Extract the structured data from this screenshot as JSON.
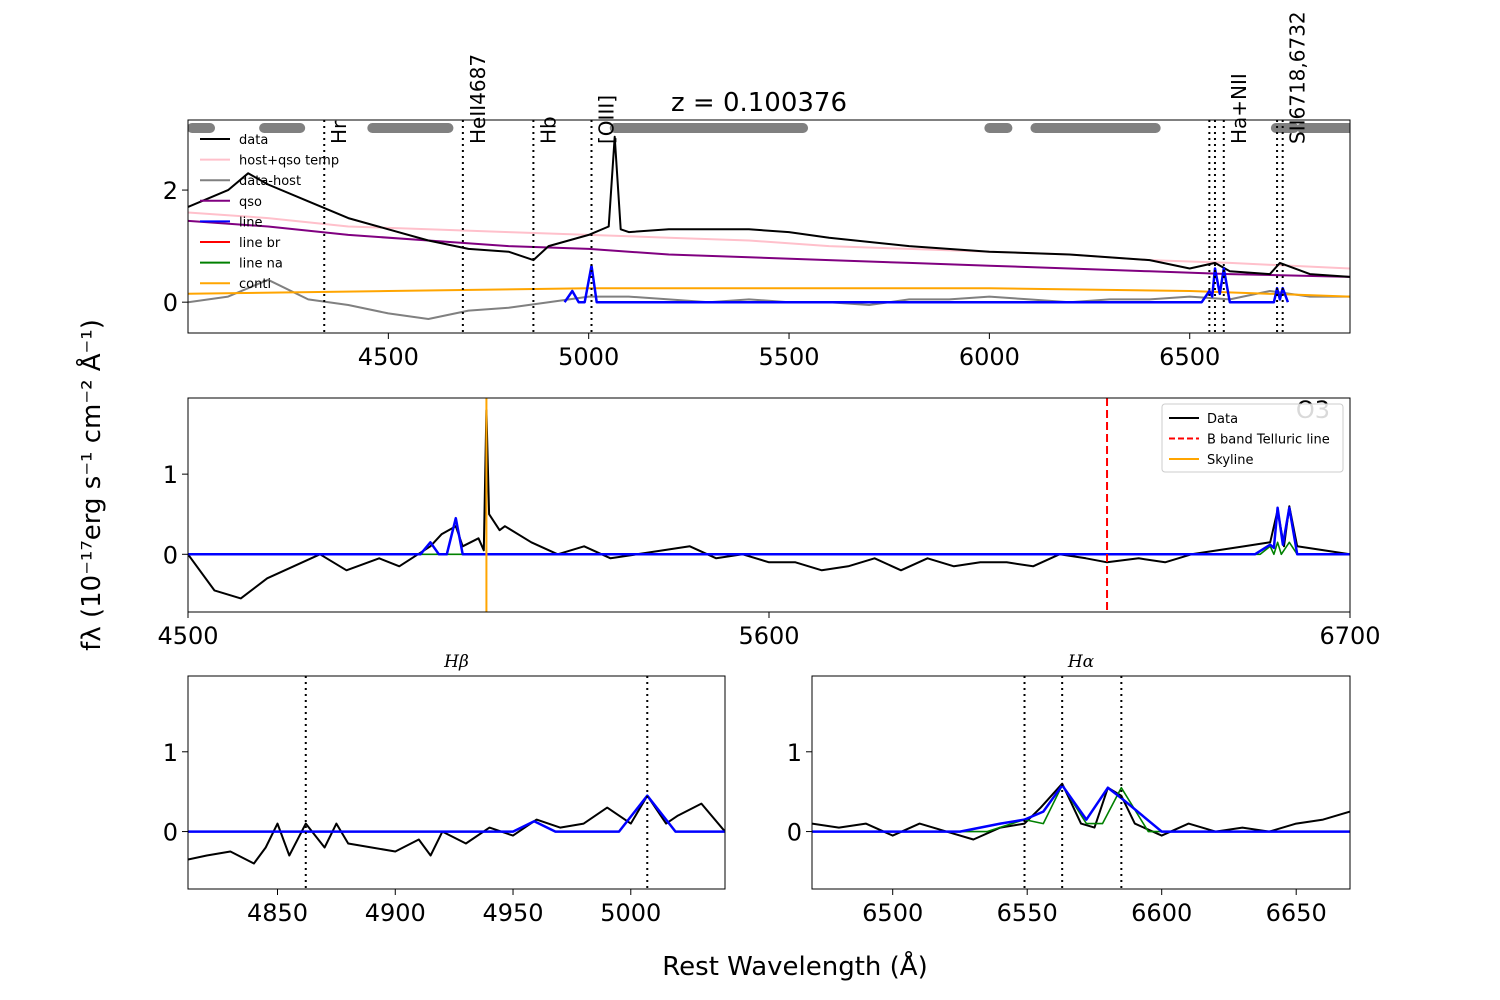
{
  "figure": {
    "xlabel": "Rest Wavelength (Å)",
    "ylabel": "fλ (10⁻¹⁷erg s⁻¹ cm⁻² Å⁻¹)"
  },
  "chart_data": [
    {
      "type": "line",
      "panel": "full-spectrum",
      "title": "z = 0.100376",
      "xlim": [
        4000,
        6900
      ],
      "ylim": [
        -0.55,
        3.25
      ],
      "xticks": [
        4500,
        5000,
        5500,
        6000,
        6500
      ],
      "yticks": [
        0,
        2
      ],
      "grid": false,
      "legend_position": "top-left",
      "legend": [
        {
          "label": "data",
          "color": "#000000"
        },
        {
          "label": "host+qso temp",
          "color": "#ffc0cb"
        },
        {
          "label": "data-host",
          "color": "#808080"
        },
        {
          "label": "qso",
          "color": "#800080"
        },
        {
          "label": "line",
          "color": "#0000ff"
        },
        {
          "label": "line br",
          "color": "#ff0000"
        },
        {
          "label": "line na",
          "color": "#008000"
        },
        {
          "label": "conti",
          "color": "#ffa500"
        }
      ],
      "line_markers": [
        {
          "label": "Hr",
          "x": [
            4340
          ]
        },
        {
          "label": "HeII4687",
          "x": [
            4686
          ]
        },
        {
          "label": "Hb",
          "x": [
            4862
          ]
        },
        {
          "label": "[OIII]",
          "x": [
            5007
          ]
        },
        {
          "label": "Ha+NII",
          "x": [
            6549,
            6563,
            6585
          ]
        },
        {
          "label": "SII6718,6732",
          "x": [
            6718,
            6732
          ]
        }
      ],
      "masked_ranges": [
        [
          4010,
          4055
        ],
        [
          4190,
          4280
        ],
        [
          4460,
          4650
        ],
        [
          5065,
          5535
        ],
        [
          6000,
          6045
        ],
        [
          6115,
          6415
        ],
        [
          6715,
          6760
        ],
        [
          6780,
          6900
        ]
      ],
      "series": [
        {
          "name": "data",
          "color": "#000000",
          "x": [
            4000,
            4100,
            4150,
            4200,
            4300,
            4400,
            4500,
            4600,
            4700,
            4800,
            4862,
            4900,
            5000,
            5050,
            5065,
            5080,
            5100,
            5200,
            5300,
            5400,
            5500,
            5600,
            5800,
            6000,
            6200,
            6400,
            6500,
            6563,
            6600,
            6700,
            6725,
            6800,
            6900
          ],
          "y": [
            1.7,
            2.0,
            2.3,
            2.1,
            1.8,
            1.5,
            1.3,
            1.1,
            0.95,
            0.9,
            0.75,
            1.0,
            1.2,
            1.35,
            2.95,
            1.3,
            1.25,
            1.3,
            1.3,
            1.3,
            1.25,
            1.15,
            1.0,
            0.9,
            0.85,
            0.75,
            0.6,
            0.7,
            0.55,
            0.5,
            0.7,
            0.5,
            0.45
          ]
        },
        {
          "name": "host+qso temp",
          "color": "#ffc0cb",
          "x": [
            4000,
            4200,
            4400,
            4600,
            4800,
            5000,
            5200,
            5400,
            5600,
            5800,
            6000,
            6200,
            6400,
            6600,
            6900
          ],
          "y": [
            1.6,
            1.5,
            1.35,
            1.3,
            1.25,
            1.2,
            1.15,
            1.1,
            1.0,
            0.95,
            0.9,
            0.85,
            0.75,
            0.7,
            0.6
          ]
        },
        {
          "name": "qso",
          "color": "#800080",
          "x": [
            4000,
            4200,
            4400,
            4600,
            4800,
            5000,
            5200,
            5400,
            5600,
            5800,
            6000,
            6200,
            6400,
            6600,
            6900
          ],
          "y": [
            1.45,
            1.35,
            1.2,
            1.1,
            1.0,
            0.95,
            0.85,
            0.8,
            0.75,
            0.7,
            0.65,
            0.6,
            0.55,
            0.5,
            0.45
          ]
        },
        {
          "name": "data-host",
          "color": "#808080",
          "x": [
            4000,
            4100,
            4200,
            4300,
            4400,
            4500,
            4600,
            4700,
            4800,
            4900,
            5000,
            5100,
            5200,
            5300,
            5400,
            5500,
            5600,
            5700,
            5800,
            5900,
            6000,
            6100,
            6200,
            6300,
            6400,
            6500,
            6600,
            6700,
            6800,
            6900
          ],
          "y": [
            0.0,
            0.1,
            0.4,
            0.05,
            -0.05,
            -0.2,
            -0.3,
            -0.15,
            -0.1,
            0.0,
            0.1,
            0.1,
            0.05,
            0.0,
            0.05,
            0.0,
            0.0,
            -0.05,
            0.05,
            0.05,
            0.1,
            0.05,
            0.0,
            0.05,
            0.05,
            0.1,
            0.05,
            0.2,
            0.1,
            0.1
          ]
        },
        {
          "name": "conti",
          "color": "#ffa500",
          "x": [
            4000,
            4500,
            5000,
            5500,
            6000,
            6500,
            6900
          ],
          "y": [
            0.15,
            0.2,
            0.25,
            0.25,
            0.25,
            0.2,
            0.1
          ]
        },
        {
          "name": "line",
          "color": "#0000ff",
          "x": [
            4940,
            4959,
            4975,
            4990,
            5007,
            5020,
            6530,
            6549,
            6556,
            6563,
            6575,
            6585,
            6600,
            6710,
            6718,
            6725,
            6732,
            6745
          ],
          "y": [
            0.0,
            0.2,
            0.0,
            0.0,
            0.65,
            0.0,
            0.0,
            0.2,
            0.1,
            0.6,
            0.15,
            0.6,
            0.0,
            0.0,
            0.25,
            0.05,
            0.25,
            0.0
          ]
        }
      ]
    },
    {
      "type": "line",
      "panel": "line-region",
      "xlim": [
        4500,
        6700
      ],
      "ylim": [
        -0.72,
        1.95
      ],
      "xticks": [
        4500,
        5600,
        6700
      ],
      "yticks": [
        0,
        1
      ],
      "overlay_label": "O3",
      "legend_position": "top-right",
      "legend": [
        {
          "label": "Data",
          "color": "#000000",
          "style": "solid"
        },
        {
          "label": "B band Telluric line",
          "color": "#ff0000",
          "style": "dashed"
        },
        {
          "label": "Skyline",
          "color": "#ffa500",
          "style": "solid"
        }
      ],
      "vlines": [
        {
          "name": "B band Telluric line",
          "x": 6240,
          "color": "#ff0000"
        },
        {
          "name": "Skyline",
          "x": 5065,
          "color": "#ffa500"
        }
      ],
      "series": [
        {
          "name": "Data",
          "color": "#000000",
          "x": [
            4500,
            4550,
            4600,
            4650,
            4700,
            4750,
            4800,
            4862,
            4900,
            4959,
            4980,
            5007,
            5020,
            5050,
            5060,
            5065,
            5070,
            5090,
            5100,
            5150,
            5200,
            5250,
            5300,
            5350,
            5400,
            5450,
            5500,
            5550,
            5600,
            5650,
            5700,
            5750,
            5800,
            5850,
            5900,
            5950,
            6000,
            6050,
            6100,
            6150,
            6200,
            6240,
            6300,
            6350,
            6400,
            6450,
            6500,
            6549,
            6563,
            6575,
            6585,
            6600,
            6650,
            6700
          ],
          "y": [
            0.0,
            -0.45,
            -0.55,
            -0.3,
            -0.15,
            0.0,
            -0.2,
            -0.05,
            -0.15,
            0.1,
            0.25,
            0.35,
            0.1,
            0.2,
            0.05,
            1.8,
            0.5,
            0.3,
            0.35,
            0.15,
            0.0,
            0.1,
            -0.05,
            0.0,
            0.05,
            0.1,
            -0.05,
            0.0,
            -0.1,
            -0.1,
            -0.2,
            -0.15,
            -0.05,
            -0.2,
            -0.05,
            -0.15,
            -0.1,
            -0.1,
            -0.15,
            0.0,
            -0.05,
            -0.1,
            -0.05,
            -0.1,
            0.0,
            0.05,
            0.1,
            0.15,
            0.55,
            0.1,
            0.6,
            0.1,
            0.05,
            0.0
          ]
        },
        {
          "name": "line",
          "color": "#0000ff",
          "x": [
            4500,
            4940,
            4959,
            4975,
            4990,
            5007,
            5020,
            6520,
            6549,
            6556,
            6563,
            6573,
            6585,
            6600,
            6700
          ],
          "y": [
            0.0,
            0.0,
            0.15,
            0.0,
            0.0,
            0.45,
            0.0,
            0.0,
            0.12,
            0.08,
            0.58,
            0.12,
            0.58,
            0.0,
            0.0
          ]
        },
        {
          "name": "line na",
          "color": "#008000",
          "x": [
            4500,
            6530,
            6549,
            6556,
            6563,
            6570,
            6585,
            6600,
            6700
          ],
          "y": [
            0.0,
            0.0,
            0.1,
            0.0,
            0.15,
            0.0,
            0.15,
            0.0,
            0.0
          ]
        }
      ]
    },
    {
      "type": "line",
      "panel": "hbeta-zoom",
      "title": "Hβ",
      "xlim": [
        4812,
        5040
      ],
      "ylim": [
        -0.72,
        1.95
      ],
      "xticks": [
        4850,
        4900,
        4950,
        5000
      ],
      "yticks": [
        0,
        1
      ],
      "vlines": [
        4862,
        5007
      ],
      "series": [
        {
          "name": "Data",
          "color": "#000000",
          "x": [
            4812,
            4820,
            4830,
            4840,
            4845,
            4850,
            4855,
            4862,
            4870,
            4875,
            4880,
            4890,
            4900,
            4910,
            4915,
            4920,
            4930,
            4940,
            4950,
            4960,
            4970,
            4980,
            4990,
            5000,
            5007,
            5015,
            5020,
            5030,
            5040
          ],
          "y": [
            -0.35,
            -0.3,
            -0.25,
            -0.4,
            -0.2,
            0.1,
            -0.3,
            0.1,
            -0.2,
            0.1,
            -0.15,
            -0.2,
            -0.25,
            -0.1,
            -0.3,
            0.0,
            -0.15,
            0.05,
            -0.05,
            0.15,
            0.05,
            0.1,
            0.3,
            0.1,
            0.45,
            0.1,
            0.2,
            0.35,
            0.0
          ]
        },
        {
          "name": "line",
          "color": "#0000ff",
          "x": [
            4812,
            4950,
            4959,
            4968,
            4995,
            5007,
            5019,
            5040
          ],
          "y": [
            0.0,
            0.0,
            0.13,
            0.0,
            0.0,
            0.45,
            0.0,
            0.0
          ]
        },
        {
          "name": "line na",
          "color": "#008000",
          "x": [
            4812,
            4950,
            4959,
            4968,
            4995,
            5007,
            5019,
            5040
          ],
          "y": [
            0.0,
            0.0,
            0.13,
            0.0,
            0.0,
            0.45,
            0.0,
            0.0
          ]
        }
      ]
    },
    {
      "type": "line",
      "panel": "halpha-zoom",
      "title": "Hα",
      "xlim": [
        6470,
        6670
      ],
      "ylim": [
        -0.72,
        1.95
      ],
      "xticks": [
        6500,
        6550,
        6600,
        6650
      ],
      "yticks": [
        0,
        1
      ],
      "vlines": [
        6549,
        6563,
        6585
      ],
      "series": [
        {
          "name": "Data",
          "color": "#000000",
          "x": [
            6470,
            6480,
            6490,
            6500,
            6510,
            6520,
            6530,
            6540,
            6549,
            6555,
            6563,
            6570,
            6575,
            6580,
            6585,
            6590,
            6600,
            6610,
            6620,
            6630,
            6640,
            6650,
            6660,
            6670
          ],
          "y": [
            0.1,
            0.05,
            0.1,
            -0.05,
            0.1,
            0.0,
            -0.1,
            0.05,
            0.1,
            0.3,
            0.6,
            0.1,
            0.05,
            0.55,
            0.45,
            0.1,
            -0.05,
            0.1,
            0.0,
            0.05,
            0.0,
            0.1,
            0.15,
            0.25
          ]
        },
        {
          "name": "line",
          "color": "#0000ff",
          "x": [
            6470,
            6525,
            6540,
            6549,
            6556,
            6563,
            6572,
            6580,
            6585,
            6600,
            6670
          ],
          "y": [
            0.0,
            0.0,
            0.1,
            0.15,
            0.25,
            0.58,
            0.15,
            0.55,
            0.42,
            0.0,
            0.0
          ]
        },
        {
          "name": "line na",
          "color": "#008000",
          "x": [
            6470,
            6535,
            6549,
            6556,
            6563,
            6572,
            6578,
            6585,
            6595,
            6670
          ],
          "y": [
            0.0,
            0.0,
            0.15,
            0.1,
            0.58,
            0.1,
            0.1,
            0.55,
            0.0,
            0.0
          ]
        }
      ]
    }
  ]
}
